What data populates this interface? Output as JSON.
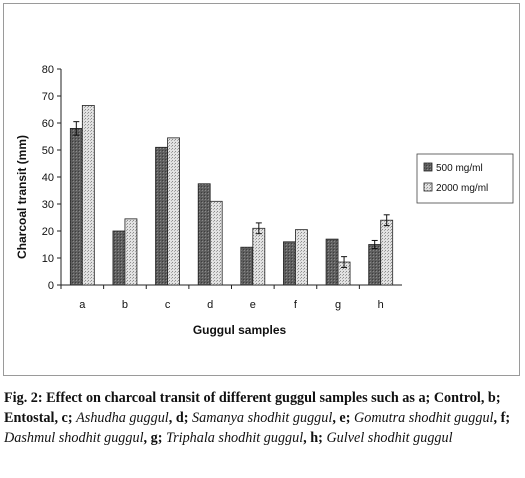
{
  "chart_data": {
    "type": "bar",
    "title": "",
    "xlabel": "Guggul samples",
    "ylabel": "Charcoal transit (mm)",
    "ylim": [
      0,
      80
    ],
    "yticks": [
      0,
      10,
      20,
      30,
      40,
      50,
      60,
      70,
      80
    ],
    "categories": [
      "a",
      "b",
      "c",
      "d",
      "e",
      "f",
      "g",
      "h"
    ],
    "series": [
      {
        "name": "500 mg/ml",
        "values": [
          58,
          20,
          51,
          37.5,
          14,
          16,
          17,
          15
        ],
        "errors": [
          2.5,
          0,
          0,
          0,
          0,
          0,
          0,
          1.5
        ],
        "color": "#6b6b6b",
        "pattern": "dark"
      },
      {
        "name": "2000 mg/ml",
        "values": [
          66.5,
          24.5,
          54.5,
          31,
          21,
          20.5,
          8.5,
          24
        ],
        "errors": [
          0,
          0,
          0,
          0,
          2,
          0,
          2,
          2
        ],
        "color": "#cfcfcf",
        "pattern": "dotted"
      }
    ],
    "legend_position": "right",
    "grid": false
  },
  "caption": {
    "label": "Fig. 2:",
    "parts": [
      {
        "text": " Effect on charcoal transit of different guggul samples such as a; Control, b; Entostal, c; ",
        "style": "b"
      },
      {
        "text": "Ashudha guggul",
        "style": "i"
      },
      {
        "text": ", d; ",
        "style": "b"
      },
      {
        "text": "Samanya shodhit guggul",
        "style": "i"
      },
      {
        "text": ", e; ",
        "style": "b"
      },
      {
        "text": "Gomutra shodhit guggul",
        "style": "i"
      },
      {
        "text": ", f; ",
        "style": "b"
      },
      {
        "text": "Dashmul shodhit guggul",
        "style": "i"
      },
      {
        "text": ", g; ",
        "style": "b"
      },
      {
        "text": "Triphala shodhit guggul",
        "style": "i"
      },
      {
        "text": ", h; ",
        "style": "b"
      },
      {
        "text": "Gulvel shodhit guggul",
        "style": "i"
      }
    ]
  }
}
